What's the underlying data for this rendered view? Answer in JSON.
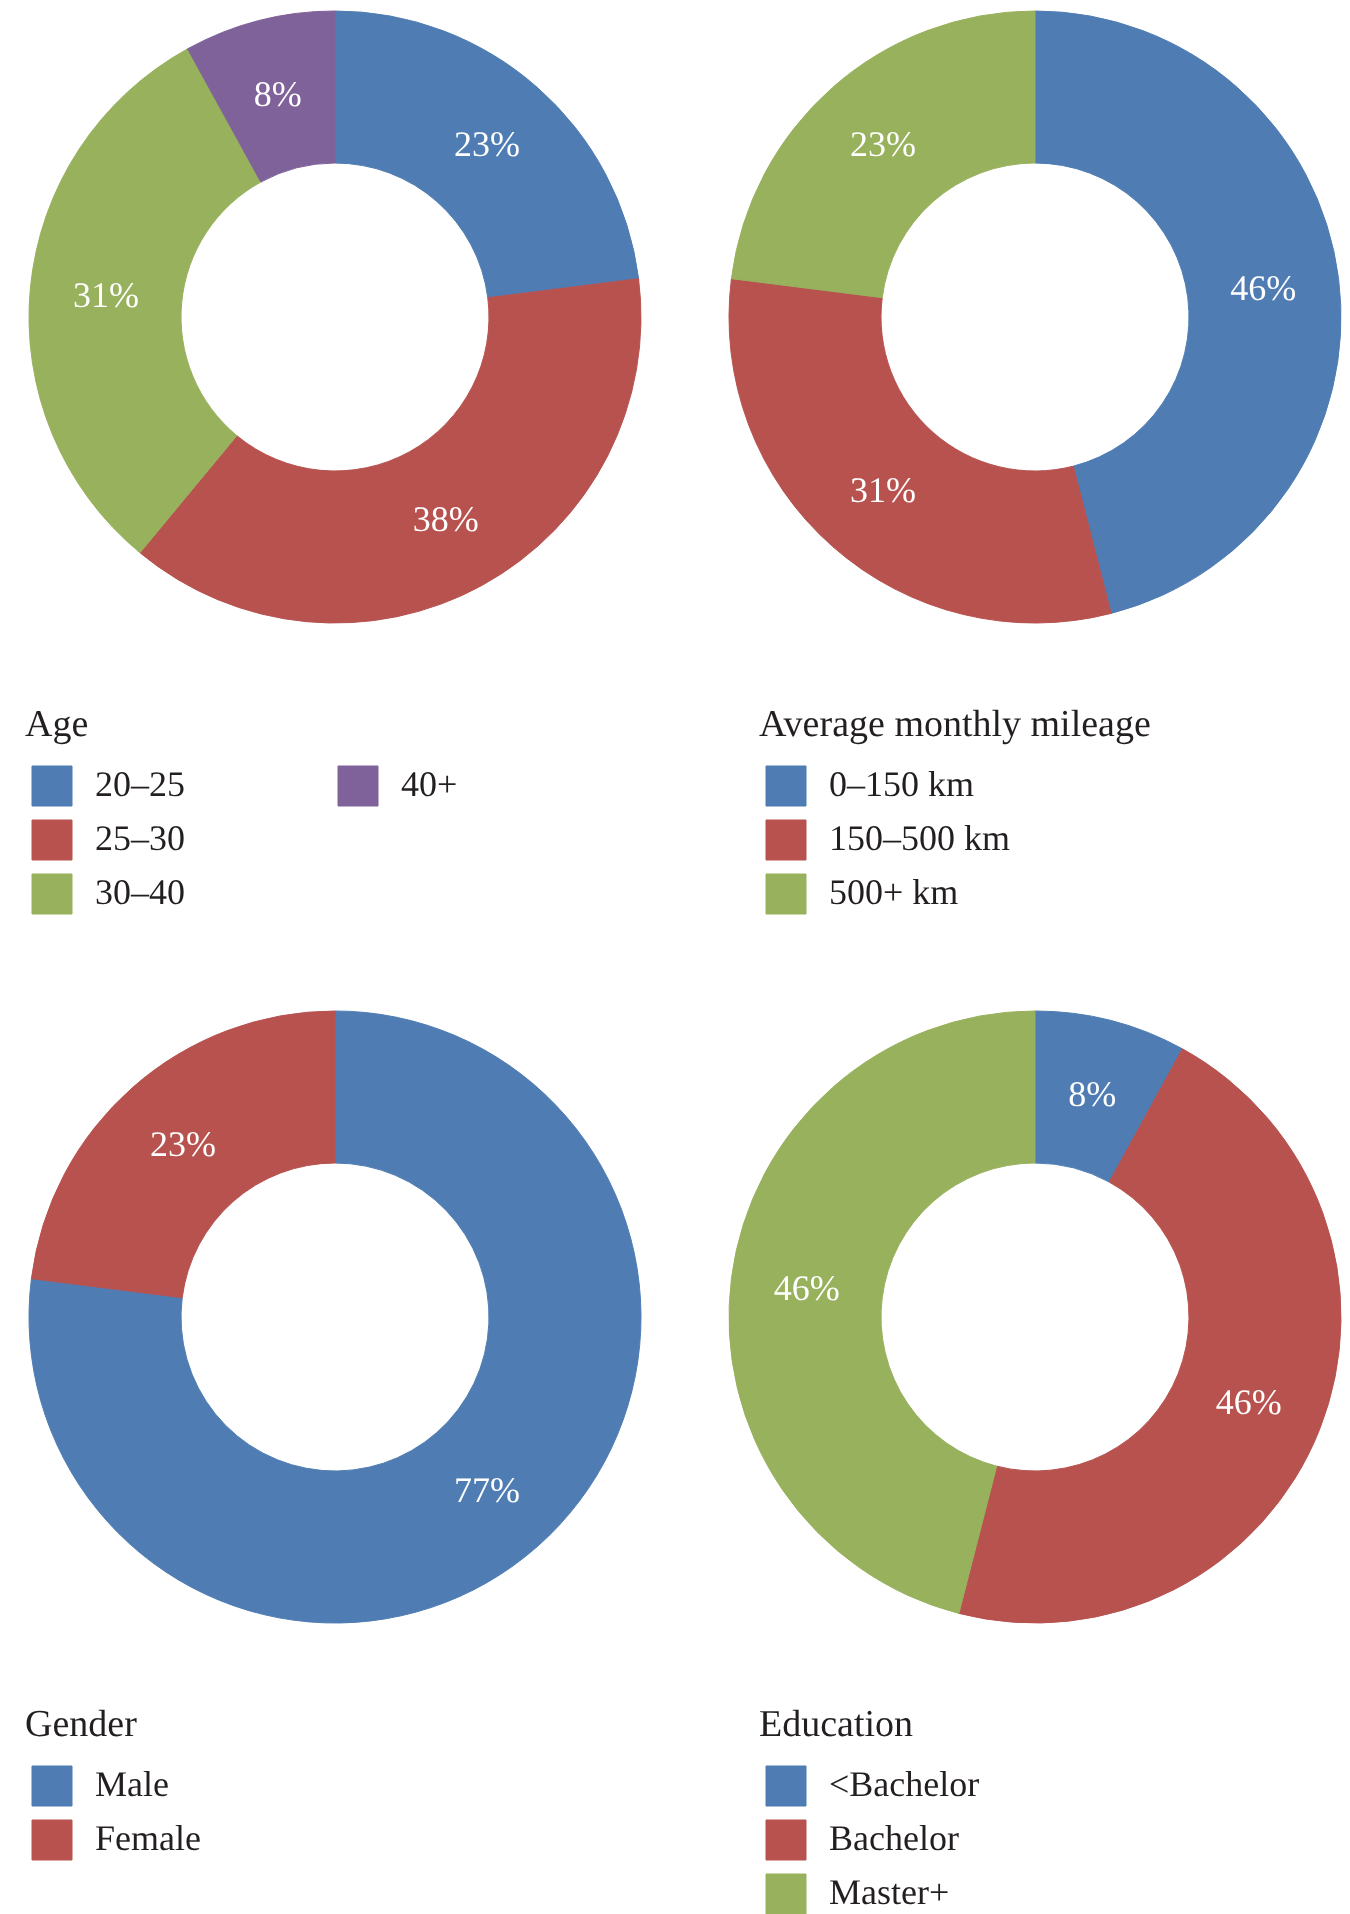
{
  "chart_data": [
    {
      "type": "donut",
      "legend_title": "Age",
      "legend": "bottom",
      "categories": [
        "20–25",
        "25–30",
        "30–40",
        "40+"
      ],
      "values": [
        23,
        38,
        31,
        8
      ],
      "value_labels": [
        "23%",
        "38%",
        "31%",
        "8%"
      ],
      "colors": [
        "#4f7db3",
        "#b7524f",
        "#98b15d",
        "#7f6299"
      ]
    },
    {
      "type": "donut",
      "legend_title": "Average monthly mileage",
      "legend": "bottom",
      "categories": [
        "0–150 km",
        "150–500 km",
        "500+ km"
      ],
      "values": [
        46,
        31,
        23
      ],
      "value_labels": [
        "46%",
        "31%",
        "23%"
      ],
      "colors": [
        "#4f7db3",
        "#b7524f",
        "#98b15d"
      ]
    },
    {
      "type": "donut",
      "legend_title": "Gender",
      "legend": "bottom",
      "categories": [
        "Male",
        "Female"
      ],
      "values": [
        77,
        23
      ],
      "value_labels": [
        "77%",
        "23%"
      ],
      "colors": [
        "#4f7db3",
        "#b7524f"
      ]
    },
    {
      "type": "donut",
      "legend_title": "Education",
      "legend": "bottom",
      "categories": [
        "<Bachelor",
        "Bachelor",
        "Master+"
      ],
      "values": [
        8,
        46,
        46
      ],
      "value_labels": [
        "8%",
        "46%",
        "46%"
      ],
      "colors": [
        "#4f7db3",
        "#b7524f",
        "#98b15d"
      ]
    }
  ]
}
